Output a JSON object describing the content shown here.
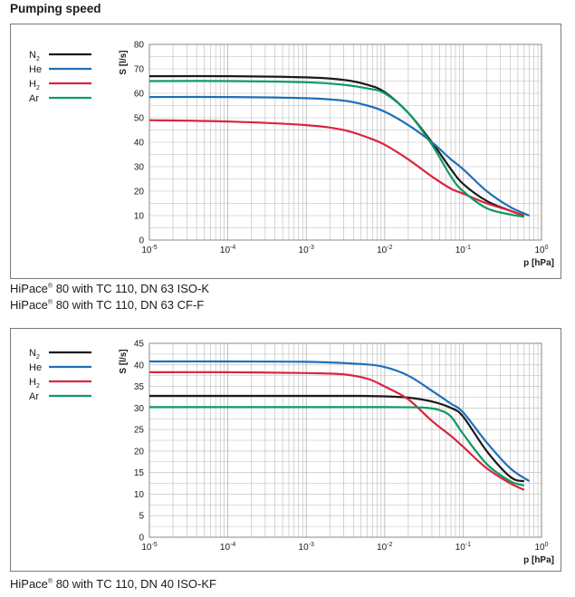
{
  "section_title": "Pumping speed",
  "panels": [
    {
      "caption_before": "HiPace",
      "caption_mark": "®",
      "caption_after": " 80 with TC 110, DN 63 ISO-K"
    },
    {
      "caption_before": "HiPace",
      "caption_mark": "®",
      "caption_after": " 80 with TC 110, DN 63 CF-F"
    },
    {
      "caption_before": "HiPace",
      "caption_mark": "®",
      "caption_after": " 80 with TC 110, DN 40 ISO-KF"
    }
  ],
  "colors": {
    "N2": "#1a1a1a",
    "He": "#1f6fb8",
    "H2": "#d9253f",
    "Ar": "#0e9b62",
    "grid": "#b9b9b9",
    "frame": "#7a7a7a"
  },
  "chart_data": [
    {
      "type": "line",
      "ylabel": "S [l/s]",
      "xlabel": "p [hPa]",
      "xscale": "log",
      "xlim": [
        1e-05,
        1
      ],
      "ylim": [
        0,
        80
      ],
      "yticks": [
        0,
        10,
        20,
        30,
        40,
        50,
        60,
        70,
        80
      ],
      "xtick_labels": [
        {
          "base": "10",
          "exp": "-5"
        },
        {
          "base": "10",
          "exp": "-4"
        },
        {
          "base": "10",
          "exp": "-3"
        },
        {
          "base": "10",
          "exp": "-2"
        },
        {
          "base": "10",
          "exp": "-1"
        },
        {
          "base": "10",
          "exp": "0"
        }
      ],
      "grid": true,
      "legend_position": "left",
      "series": [
        {
          "key": "N2",
          "name_base": "N",
          "name_sub": "2",
          "x": [
            1e-05,
            0.0001,
            0.001,
            0.003,
            0.006,
            0.01,
            0.02,
            0.04,
            0.07,
            0.1,
            0.2,
            0.4,
            0.6
          ],
          "y": [
            67,
            67,
            66.5,
            65.5,
            63.5,
            60.5,
            52,
            40,
            29,
            23,
            16,
            12,
            10
          ]
        },
        {
          "key": "He",
          "name_base": "He",
          "name_sub": "",
          "x": [
            1e-05,
            0.0001,
            0.001,
            0.003,
            0.006,
            0.01,
            0.02,
            0.04,
            0.07,
            0.1,
            0.2,
            0.4,
            0.7
          ],
          "y": [
            58.5,
            58.5,
            58,
            57,
            55,
            52.5,
            47,
            40,
            33,
            29,
            20,
            13.5,
            10
          ]
        },
        {
          "key": "H2",
          "name_base": "H",
          "name_sub": "2",
          "x": [
            1e-05,
            0.0001,
            0.001,
            0.003,
            0.006,
            0.01,
            0.02,
            0.04,
            0.07,
            0.1,
            0.2,
            0.4,
            0.6
          ],
          "y": [
            49,
            48.5,
            47,
            45,
            42,
            39,
            33,
            26,
            21,
            19,
            15,
            12,
            10
          ]
        },
        {
          "key": "Ar",
          "name_base": "Ar",
          "name_sub": "",
          "x": [
            1e-05,
            0.0001,
            0.001,
            0.003,
            0.006,
            0.01,
            0.02,
            0.04,
            0.07,
            0.1,
            0.2,
            0.4,
            0.6
          ],
          "y": [
            65,
            65,
            64.5,
            63.5,
            62,
            60,
            52,
            39,
            26,
            20,
            13,
            10.5,
            9.5
          ]
        }
      ]
    },
    {
      "type": "line",
      "ylabel": "S [l/s]",
      "xlabel": "p [hPa]",
      "xscale": "log",
      "xlim": [
        1e-05,
        1
      ],
      "ylim": [
        0,
        45
      ],
      "yticks": [
        0,
        5,
        10,
        15,
        20,
        25,
        30,
        35,
        40,
        45
      ],
      "xtick_labels": [
        {
          "base": "10",
          "exp": "-5"
        },
        {
          "base": "10",
          "exp": "-4"
        },
        {
          "base": "10",
          "exp": "-3"
        },
        {
          "base": "10",
          "exp": "-2"
        },
        {
          "base": "10",
          "exp": "-1"
        },
        {
          "base": "10",
          "exp": "0"
        }
      ],
      "grid": true,
      "legend_position": "left",
      "series": [
        {
          "key": "N2",
          "name_base": "N",
          "name_sub": "2",
          "x": [
            1e-05,
            0.0001,
            0.001,
            0.005,
            0.01,
            0.02,
            0.04,
            0.07,
            0.1,
            0.2,
            0.4,
            0.6
          ],
          "y": [
            32.8,
            32.8,
            32.8,
            32.8,
            32.7,
            32.4,
            31.5,
            30,
            28,
            20,
            14,
            13
          ]
        },
        {
          "key": "He",
          "name_base": "He",
          "name_sub": "",
          "x": [
            1e-05,
            0.0001,
            0.001,
            0.005,
            0.01,
            0.02,
            0.04,
            0.07,
            0.1,
            0.2,
            0.4,
            0.7
          ],
          "y": [
            40.8,
            40.8,
            40.7,
            40.2,
            39.5,
            37.5,
            34,
            31,
            29,
            22,
            16,
            13
          ]
        },
        {
          "key": "H2",
          "name_base": "H",
          "name_sub": "2",
          "x": [
            1e-05,
            0.0001,
            0.001,
            0.003,
            0.006,
            0.01,
            0.02,
            0.04,
            0.07,
            0.1,
            0.2,
            0.4,
            0.6
          ],
          "y": [
            38.3,
            38.3,
            38.1,
            37.8,
            36.8,
            35,
            32,
            27,
            23.5,
            21,
            16,
            12.5,
            11
          ]
        },
        {
          "key": "Ar",
          "name_base": "Ar",
          "name_sub": "",
          "x": [
            1e-05,
            0.0001,
            0.001,
            0.01,
            0.03,
            0.05,
            0.07,
            0.1,
            0.2,
            0.4,
            0.6
          ],
          "y": [
            30.2,
            30.2,
            30.2,
            30.2,
            30.1,
            29.5,
            28,
            24,
            17,
            13,
            12
          ]
        }
      ]
    }
  ]
}
